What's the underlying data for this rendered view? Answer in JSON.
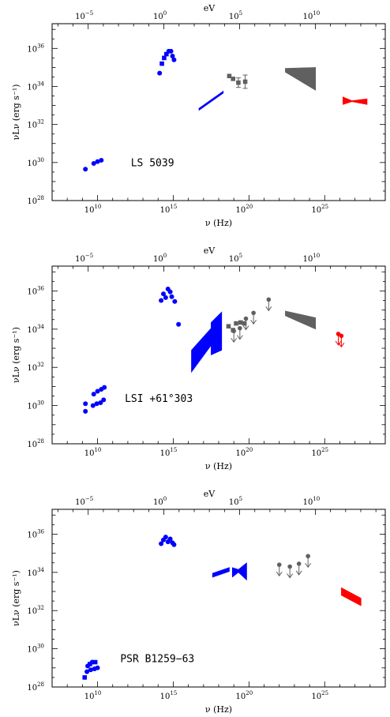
{
  "chart_data": [
    {
      "type": "scatter",
      "source_label": "LS 5039",
      "xlabel": "ν (Hz)",
      "ylabel": "νLν (erg s⁻¹)",
      "top_axis_label": "eV",
      "x_log_range": [
        7,
        29
      ],
      "y_log_range": [
        28,
        37.3
      ],
      "x_ticks": [
        "10",
        "15",
        "20",
        "25"
      ],
      "top_ticks": [
        "−5",
        "0",
        "5",
        "10"
      ],
      "y_ticks": [
        "28",
        "30",
        "32",
        "34",
        "36"
      ],
      "colors": {
        "radio_optical_x": "#0000ff",
        "soft_gamma": "#606060",
        "tev": "#ff0000"
      },
      "points": [
        {
          "logx": 9.2,
          "logy": 29.65,
          "color": "#0000ff"
        },
        {
          "logx": 9.75,
          "logy": 29.95,
          "color": "#0000ff"
        },
        {
          "logx": 10.0,
          "logy": 30.05,
          "color": "#0000ff"
        },
        {
          "logx": 10.25,
          "logy": 30.12,
          "color": "#0000ff"
        },
        {
          "logx": 14.1,
          "logy": 34.7,
          "color": "#0000ff"
        },
        {
          "logx": 14.25,
          "logy": 35.2,
          "color": "#0000ff",
          "shape": "square"
        },
        {
          "logx": 14.4,
          "logy": 35.5,
          "color": "#0000ff",
          "shape": "square"
        },
        {
          "logx": 14.55,
          "logy": 35.7,
          "color": "#0000ff",
          "shape": "square"
        },
        {
          "logx": 14.7,
          "logy": 35.85,
          "color": "#0000ff"
        },
        {
          "logx": 14.85,
          "logy": 35.85,
          "color": "#0000ff"
        },
        {
          "logx": 14.95,
          "logy": 35.6,
          "color": "#0000ff"
        },
        {
          "logx": 15.05,
          "logy": 35.4,
          "color": "#0000ff"
        },
        {
          "logx": 18.7,
          "logy": 34.55,
          "color": "#606060",
          "shape": "square"
        },
        {
          "logx": 18.95,
          "logy": 34.4,
          "color": "#606060",
          "shape": "square"
        },
        {
          "logx": 19.3,
          "logy": 34.2,
          "color": "#606060",
          "shape": "square",
          "err": 0.25
        },
        {
          "logx": 19.75,
          "logy": 34.25,
          "color": "#606060",
          "shape": "square",
          "err": 0.35
        }
      ],
      "lines": [
        {
          "x": [
            16.7,
            18.3
          ],
          "y1": [
            32.75,
            33.65
          ],
          "y2": [
            32.85,
            33.75
          ],
          "color": "#0000ff"
        }
      ],
      "bowties": [
        {
          "x": [
            22.4,
            24.4
          ],
          "y_low": [
            34.75,
            33.8
          ],
          "y_high": [
            34.95,
            35.0
          ],
          "color": "#606060"
        },
        {
          "x": [
            26.2,
            27.8
          ],
          "y_low": [
            33.05,
            33.05
          ],
          "y_high": [
            33.45,
            33.35
          ],
          "pinch": [
            26.8,
            33.2,
            33.25
          ],
          "color": "#ff0000"
        }
      ],
      "upper_limits": []
    },
    {
      "type": "scatter",
      "source_label": "LSI +61°303",
      "xlabel": "ν (Hz)",
      "ylabel": "νLν (erg s⁻¹)",
      "top_axis_label": "eV",
      "x_log_range": [
        7,
        29
      ],
      "y_log_range": [
        28,
        37.3
      ],
      "x_ticks": [
        "10",
        "15",
        "20",
        "25"
      ],
      "top_ticks": [
        "−5",
        "0",
        "5",
        "10"
      ],
      "y_ticks": [
        "28",
        "30",
        "32",
        "34",
        "36"
      ],
      "colors": {
        "radio_optical_x": "#0000ff",
        "soft_gamma": "#606060",
        "tev": "#ff0000"
      },
      "points": [
        {
          "logx": 9.2,
          "logy": 29.7,
          "color": "#0000ff"
        },
        {
          "logx": 9.2,
          "logy": 30.1,
          "color": "#0000ff"
        },
        {
          "logx": 9.7,
          "logy": 30.0,
          "color": "#0000ff"
        },
        {
          "logx": 9.75,
          "logy": 30.6,
          "color": "#0000ff"
        },
        {
          "logx": 9.95,
          "logy": 30.1,
          "color": "#0000ff"
        },
        {
          "logx": 10.0,
          "logy": 30.75,
          "color": "#0000ff"
        },
        {
          "logx": 10.2,
          "logy": 30.15,
          "color": "#0000ff"
        },
        {
          "logx": 10.25,
          "logy": 30.85,
          "color": "#0000ff"
        },
        {
          "logx": 10.4,
          "logy": 30.3,
          "color": "#0000ff"
        },
        {
          "logx": 10.45,
          "logy": 30.95,
          "color": "#0000ff"
        },
        {
          "logx": 14.2,
          "logy": 35.5,
          "color": "#0000ff"
        },
        {
          "logx": 14.35,
          "logy": 35.85,
          "color": "#0000ff"
        },
        {
          "logx": 14.5,
          "logy": 35.65,
          "color": "#0000ff"
        },
        {
          "logx": 14.65,
          "logy": 36.1,
          "color": "#0000ff"
        },
        {
          "logx": 14.8,
          "logy": 35.95,
          "color": "#0000ff"
        },
        {
          "logx": 14.9,
          "logy": 35.7,
          "color": "#0000ff"
        },
        {
          "logx": 15.1,
          "logy": 35.45,
          "color": "#0000ff"
        },
        {
          "logx": 15.35,
          "logy": 34.25,
          "color": "#0000ff"
        },
        {
          "logx": 18.65,
          "logy": 34.15,
          "color": "#606060",
          "shape": "square"
        },
        {
          "logx": 18.95,
          "logy": 33.95,
          "color": "#606060",
          "shape": "square"
        },
        {
          "logx": 19.15,
          "logy": 34.3,
          "color": "#606060",
          "shape": "square"
        },
        {
          "logx": 19.45,
          "logy": 34.35,
          "color": "#606060",
          "shape": "square"
        },
        {
          "logx": 19.7,
          "logy": 34.3,
          "color": "#606060",
          "shape": "square"
        }
      ],
      "lines": [],
      "bowties": [
        {
          "x": [
            16.2,
            17.5
          ],
          "y_low": [
            31.75,
            33.15
          ],
          "y_high": [
            32.9,
            34.05
          ],
          "color": "#0000ff"
        },
        {
          "x": [
            17.5,
            18.2
          ],
          "y_low": [
            32.65,
            32.9
          ],
          "y_high": [
            34.35,
            34.9
          ],
          "color": "#0000ff"
        },
        {
          "x": [
            22.4,
            24.4
          ],
          "y_low": [
            34.7,
            34.0
          ],
          "y_high": [
            34.95,
            34.6
          ],
          "color": "#606060"
        }
      ],
      "upper_limits": [
        {
          "logx": 19.0,
          "logy": 33.9,
          "color": "#606060"
        },
        {
          "logx": 19.4,
          "logy": 34.05,
          "color": "#606060"
        },
        {
          "logx": 19.8,
          "logy": 34.55,
          "color": "#606060"
        },
        {
          "logx": 20.3,
          "logy": 34.85,
          "color": "#606060"
        },
        {
          "logx": 21.3,
          "logy": 35.55,
          "color": "#606060"
        },
        {
          "logx": 25.9,
          "logy": 33.75,
          "color": "#ff0000"
        },
        {
          "logx": 26.1,
          "logy": 33.65,
          "color": "#ff0000"
        }
      ]
    },
    {
      "type": "scatter",
      "source_label": "PSR B1259−63",
      "xlabel": "ν (Hz)",
      "ylabel": "νLν (erg s⁻¹)",
      "top_axis_label": "eV",
      "x_log_range": [
        7,
        29
      ],
      "y_log_range": [
        28,
        37.3
      ],
      "x_ticks": [
        "10",
        "15",
        "20",
        "25"
      ],
      "top_ticks": [
        "−5",
        "0",
        "5",
        "10"
      ],
      "y_ticks": [
        "28",
        "30",
        "32",
        "34",
        "36"
      ],
      "colors": {
        "radio_optical_x": "#0000ff",
        "soft_gamma": "#606060",
        "tev": "#ff0000"
      },
      "points": [
        {
          "logx": 9.15,
          "logy": 28.5,
          "color": "#0000ff",
          "shape": "square"
        },
        {
          "logx": 9.3,
          "logy": 28.8,
          "color": "#0000ff"
        },
        {
          "logx": 9.35,
          "logy": 29.1,
          "color": "#0000ff"
        },
        {
          "logx": 9.5,
          "logy": 29.2,
          "color": "#0000ff",
          "shape": "square"
        },
        {
          "logx": 9.55,
          "logy": 28.9,
          "color": "#0000ff"
        },
        {
          "logx": 9.65,
          "logy": 29.3,
          "color": "#0000ff"
        },
        {
          "logx": 9.8,
          "logy": 28.95,
          "color": "#0000ff"
        },
        {
          "logx": 9.85,
          "logy": 29.3,
          "color": "#0000ff",
          "shape": "square"
        },
        {
          "logx": 10.0,
          "logy": 29.0,
          "color": "#0000ff"
        },
        {
          "logx": 14.2,
          "logy": 35.5,
          "color": "#0000ff"
        },
        {
          "logx": 14.35,
          "logy": 35.7,
          "color": "#0000ff"
        },
        {
          "logx": 14.5,
          "logy": 35.85,
          "color": "#0000ff"
        },
        {
          "logx": 14.65,
          "logy": 35.6,
          "color": "#0000ff"
        },
        {
          "logx": 14.8,
          "logy": 35.75,
          "color": "#0000ff"
        },
        {
          "logx": 14.95,
          "logy": 35.55,
          "color": "#0000ff"
        },
        {
          "logx": 15.05,
          "logy": 35.45,
          "color": "#0000ff"
        }
      ],
      "lines": [
        {
          "x": [
            17.6,
            18.7
          ],
          "y1": [
            33.75,
            34.05
          ],
          "y2": [
            33.95,
            34.25
          ],
          "color": "#0000ff"
        }
      ],
      "bowties": [
        {
          "x": [
            18.9,
            19.85
          ],
          "y_low": [
            33.75,
            33.6
          ],
          "y_high": [
            34.25,
            34.5
          ],
          "pinch": [
            19.3,
            34.0,
            34.15
          ],
          "color": "#0000ff"
        },
        {
          "x": [
            26.1,
            27.4
          ],
          "y_low": [
            32.8,
            32.25
          ],
          "y_high": [
            33.2,
            32.65
          ],
          "color": "#ff0000"
        }
      ],
      "upper_limits": [
        {
          "logx": 22.0,
          "logy": 34.4,
          "color": "#606060"
        },
        {
          "logx": 22.7,
          "logy": 34.3,
          "color": "#606060"
        },
        {
          "logx": 23.3,
          "logy": 34.45,
          "color": "#606060"
        },
        {
          "logx": 23.9,
          "logy": 34.85,
          "color": "#606060"
        }
      ]
    }
  ]
}
